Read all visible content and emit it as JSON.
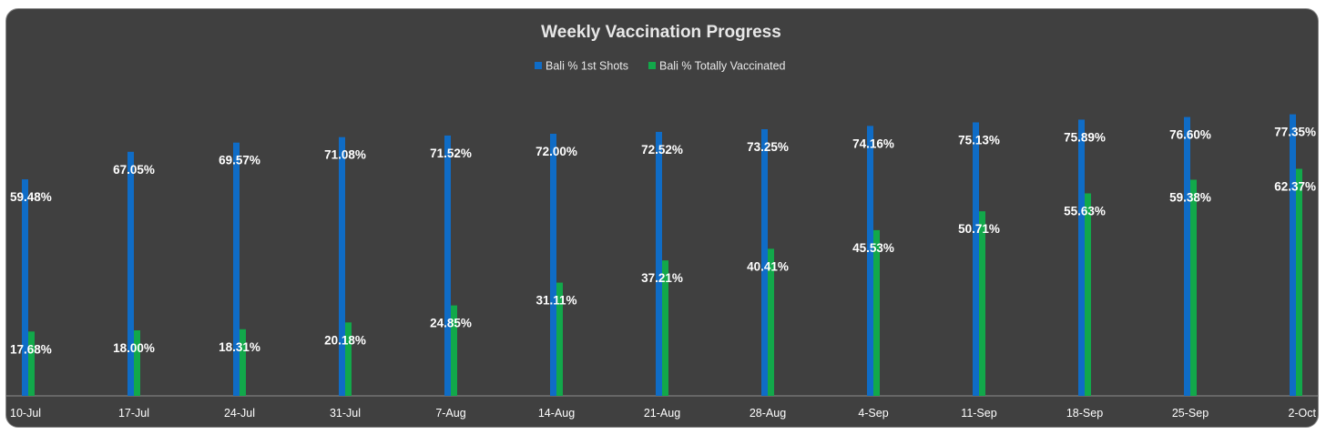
{
  "chart_data": {
    "type": "bar",
    "title": "Weekly Vaccination Progress",
    "xlabel": "",
    "ylabel": "",
    "ylim": [
      0,
      100
    ],
    "grid": false,
    "legend_position": "top-center",
    "categories": [
      "10-Jul",
      "17-Jul",
      "24-Jul",
      "31-Jul",
      "7-Aug",
      "14-Aug",
      "21-Aug",
      "28-Aug",
      "4-Sep",
      "11-Sep",
      "18-Sep",
      "25-Sep",
      "2-Oct"
    ],
    "series": [
      {
        "name": "Bali % 1st Shots",
        "color": "#0f6cc6",
        "values": [
          59.48,
          67.05,
          69.57,
          71.08,
          71.52,
          72.0,
          72.52,
          73.25,
          74.16,
          75.13,
          75.89,
          76.6,
          77.35
        ],
        "labels": [
          "59.48%",
          "67.05%",
          "69.57%",
          "71.08%",
          "71.52%",
          "72.00%",
          "72.52%",
          "73.25%",
          "74.16%",
          "75.13%",
          "75.89%",
          "76.60%",
          "77.35%"
        ]
      },
      {
        "name": "Bali % Totally Vaccinated",
        "color": "#12a84a",
        "values": [
          17.68,
          18.0,
          18.31,
          20.18,
          24.85,
          31.11,
          37.21,
          40.41,
          45.53,
          50.71,
          55.63,
          59.38,
          62.37
        ],
        "labels": [
          "17.68%",
          "18.00%",
          "18.31%",
          "20.18%",
          "24.85%",
          "31.11%",
          "37.21%",
          "40.41%",
          "45.53%",
          "50.71%",
          "55.63%",
          "59.38%",
          "62.37%"
        ]
      }
    ]
  }
}
